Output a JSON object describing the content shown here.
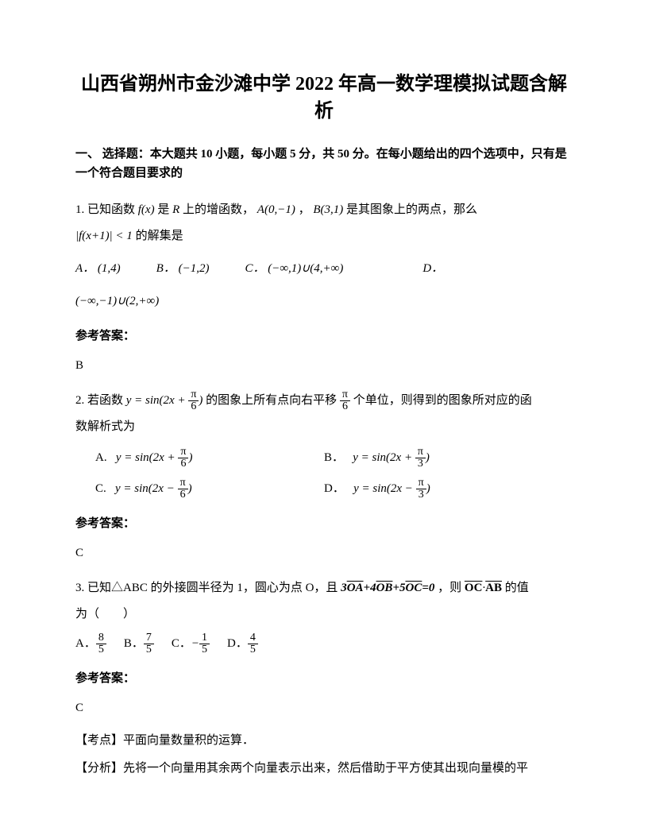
{
  "title": "山西省朔州市金沙滩中学 2022 年高一数学理模拟试题含解析",
  "section_header": "一、 选择题：本大题共 10 小题，每小题 5 分，共 50 分。在每小题给出的四个选项中，只有是一个符合题目要求的",
  "q1": {
    "prefix": "1. 已知函数",
    "fx": "f(x)",
    "mid1": "是",
    "R": "R",
    "mid2": "上的增函数，",
    "A": "A(0,−1)",
    "comma": "，",
    "B": "B(3,1)",
    "mid3": "是其图象上的两点，那么",
    "abs": "|f(x+1)| < 1",
    "tail": "的解集是",
    "optA_label": "A．",
    "optA": "(1,4)",
    "optB_label": "B．",
    "optB": "(−1,2)",
    "optC_label": "C．",
    "optC": "(−∞,1)∪(4,+∞)",
    "optD_label": "D．",
    "optD": "(−∞,−1)∪(2,+∞)"
  },
  "answer_label": "参考答案：",
  "q1_answer": "B",
  "q2": {
    "prefix": "2. 若函数",
    "func": "y = sin(2x + ",
    "pi6_num": "π",
    "pi6_den": "6",
    "close": ")",
    "mid1": "的图象上所有点向右平移",
    "shift_num": "π",
    "shift_den": "6",
    "mid2": "个单位，则得到的图象所对应的函",
    "line2": "数解析式为",
    "optA_label": "A.",
    "optA_func": "y = sin(2x + ",
    "optA_num": "π",
    "optA_den": "6",
    "optB_label": "B．",
    "optB_func": "y = sin(2x + ",
    "optB_num": "π",
    "optB_den": "3",
    "optC_label": "C.",
    "optC_func": "y = sin(2x − ",
    "optC_num": "π",
    "optC_den": "6",
    "optD_label": "D．",
    "optD_func": "y = sin(2x − ",
    "optD_num": "π",
    "optD_den": "3"
  },
  "q2_answer": "C",
  "q3": {
    "prefix": "3. 已知△ABC 的外接圆半径为 1，圆心为点 O，且",
    "eq": "3OA+4OB+5OC=0",
    "mid": "，则",
    "oc": "OC",
    "dot": "·",
    "ab": "AB",
    "tail": "的值",
    "line2": "为（　　）",
    "optA_label": "A．",
    "optA_num": "8",
    "optA_den": "5",
    "optB_label": "B．",
    "optB_num": "7",
    "optB_den": "5",
    "optC_label": "C．",
    "optC_num": "1",
    "optC_den": "5",
    "optC_neg": "−",
    "optD_label": "D．",
    "optD_num": "4",
    "optD_den": "5"
  },
  "q3_answer": "C",
  "exam_point": "【考点】平面向量数量积的运算．",
  "analysis": "【分析】先将一个向量用其余两个向量表示出来，然后借助于平方使其出现向量模的平"
}
